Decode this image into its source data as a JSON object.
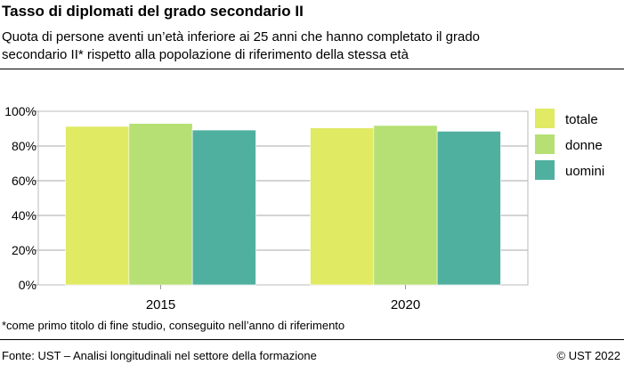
{
  "title": "Tasso di diplomati del grado secondario II",
  "subtitle_line1": "Quota di persone aventi un’età inferiore ai 25 anni che hanno completato il grado",
  "subtitle_line2": "secondario II* rispetto alla popolazione di riferimento della stessa età",
  "note": "*come primo titolo di fine studio, conseguito nell’anno di riferimento",
  "source": "Fonte: UST – Analisi longitudinali nel settore della formazione",
  "copyright": "© UST 2022",
  "chart_data": {
    "type": "bar",
    "categories": [
      "2015",
      "2020"
    ],
    "series": [
      {
        "name": "totale",
        "values": [
          91.3,
          90.4
        ],
        "color": "#e0ea62"
      },
      {
        "name": "donne",
        "values": [
          93.0,
          91.8
        ],
        "color": "#b6e073"
      },
      {
        "name": "uomini",
        "values": [
          89.2,
          88.5
        ],
        "color": "#50b0a0"
      }
    ],
    "ylim": [
      0,
      100
    ],
    "yticks": [
      "0%",
      "20%",
      "40%",
      "60%",
      "80%",
      "100%"
    ],
    "grid": true,
    "legend": "right"
  }
}
